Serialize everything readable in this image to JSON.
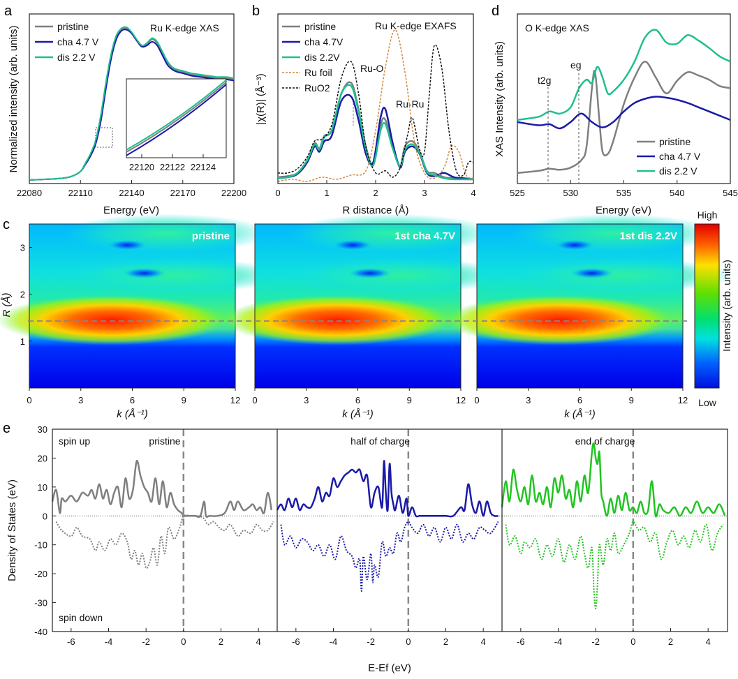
{
  "chart_data": [
    {
      "panel": "a",
      "type": "line",
      "title": "Ru K-edge XAS",
      "xlabel": "Energy (eV)",
      "ylabel": "Normalized intensity (arb. units)",
      "xlim": [
        22080,
        22200
      ],
      "ylim": [
        0,
        1.4
      ],
      "xticks": [
        22080,
        22110,
        22140,
        22170,
        22200
      ],
      "legend": "top-left",
      "series": [
        {
          "name": "pristine",
          "color": "#7f7f7f",
          "x": [
            22080,
            22090,
            22100,
            22105,
            22110,
            22113,
            22116,
            22119,
            22122,
            22125,
            22128,
            22131,
            22134,
            22137,
            22140,
            22143,
            22146,
            22149,
            22152,
            22155,
            22158,
            22161,
            22164,
            22167,
            22170,
            22175,
            22180,
            22185,
            22190,
            22195,
            22200
          ],
          "y": [
            0.03,
            0.035,
            0.045,
            0.06,
            0.1,
            0.17,
            0.24,
            0.35,
            0.55,
            0.82,
            1.05,
            1.2,
            1.27,
            1.28,
            1.24,
            1.18,
            1.13,
            1.15,
            1.19,
            1.16,
            1.08,
            1.0,
            0.95,
            0.93,
            0.92,
            0.9,
            0.89,
            0.88,
            0.87,
            0.87,
            0.86
          ]
        },
        {
          "name": "cha 4.7 V",
          "color": "#1a1aa8",
          "x": [
            22080,
            22090,
            22100,
            22105,
            22110,
            22113,
            22116,
            22119,
            22122,
            22125,
            22128,
            22131,
            22134,
            22137,
            22140,
            22143,
            22146,
            22149,
            22152,
            22155,
            22158,
            22161,
            22164,
            22167,
            22170,
            22175,
            22180,
            22185,
            22190,
            22195,
            22200
          ],
          "y": [
            0.03,
            0.035,
            0.045,
            0.06,
            0.1,
            0.16,
            0.23,
            0.33,
            0.52,
            0.79,
            1.03,
            1.19,
            1.26,
            1.27,
            1.24,
            1.18,
            1.13,
            1.14,
            1.17,
            1.14,
            1.06,
            0.98,
            0.94,
            0.92,
            0.91,
            0.89,
            0.88,
            0.87,
            0.86,
            0.86,
            0.85
          ]
        },
        {
          "name": "dis 2.2 V",
          "color": "#1fbf8f",
          "x": [
            22080,
            22090,
            22100,
            22105,
            22110,
            22113,
            22116,
            22119,
            22122,
            22125,
            22128,
            22131,
            22134,
            22137,
            22140,
            22143,
            22146,
            22149,
            22152,
            22155,
            22158,
            22161,
            22164,
            22167,
            22170,
            22175,
            22180,
            22185,
            22190,
            22195,
            22200
          ],
          "y": [
            0.03,
            0.035,
            0.045,
            0.06,
            0.1,
            0.17,
            0.25,
            0.36,
            0.57,
            0.84,
            1.07,
            1.22,
            1.28,
            1.29,
            1.25,
            1.19,
            1.14,
            1.16,
            1.2,
            1.17,
            1.09,
            1.01,
            0.96,
            0.94,
            0.93,
            0.91,
            0.9,
            0.89,
            0.88,
            0.88,
            0.87
          ]
        }
      ],
      "inset": {
        "xlim": [
          22119,
          22125.5
        ],
        "xticks": [
          22120,
          22122,
          22124
        ],
        "series": [
          {
            "name": "pristine",
            "color": "#7f7f7f",
            "x": [
              22119,
              22125.5
            ],
            "y": [
              0.35,
              0.97
            ]
          },
          {
            "name": "cha 4.7 V",
            "color": "#1a1aa8",
            "x": [
              22119,
              22125.5
            ],
            "y": [
              0.32,
              0.95
            ]
          },
          {
            "name": "dis 2.2 V",
            "color": "#1fbf8f",
            "x": [
              22119,
              22125.5
            ],
            "y": [
              0.37,
              0.99
            ]
          }
        ]
      }
    },
    {
      "panel": "b",
      "type": "line",
      "title": "Ru K-edge EXAFS",
      "xlabel": "R distance (Å)",
      "ylabel": "|χ(R)| (Å⁻³)",
      "xlim": [
        0,
        4
      ],
      "ylim": [
        0,
        1.6
      ],
      "xticks": [
        0,
        1,
        2,
        3,
        4
      ],
      "legend": "top-left",
      "annotations": [
        "Ru-O",
        "Ru-Ru"
      ],
      "series": [
        {
          "name": "pristine",
          "color": "#7f7f7f",
          "dash": false
        },
        {
          "name": "cha 4.7V",
          "color": "#1a1aa8",
          "dash": false
        },
        {
          "name": "dis 2.2V",
          "color": "#1fbf8f",
          "dash": false
        },
        {
          "name": "Ru foil",
          "color": "#d4893a",
          "dash": true
        },
        {
          "name": "RuO2",
          "color": "#111111",
          "dash": true
        }
      ]
    },
    {
      "panel": "d",
      "type": "line",
      "title": "O K-edge XAS",
      "xlabel": "Energy (eV)",
      "ylabel": "XAS Intensity (arb. units)",
      "xlim": [
        525,
        545
      ],
      "xticks": [
        525,
        530,
        535,
        540,
        545
      ],
      "legend": "bottom-right",
      "annotations": [
        "t2g",
        "eg"
      ],
      "series": [
        {
          "name": "pristine",
          "color": "#7f7f7f"
        },
        {
          "name": "cha 4.7 V",
          "color": "#1a1aa8"
        },
        {
          "name": "dis 2.2 V",
          "color": "#1fbf8f"
        }
      ]
    },
    {
      "panel": "c",
      "type": "heatmap",
      "xlabel": "k (Å⁻¹)",
      "ylabel": "R (Å)",
      "xlim": [
        0,
        12
      ],
      "ylim": [
        0,
        3.5
      ],
      "xticks": [
        0,
        3,
        6,
        9,
        12
      ],
      "yticks": [
        1,
        2,
        3
      ],
      "reference_R": 1.5,
      "maps": [
        "pristine",
        "1st cha 4.7V",
        "1st dis 2.2V"
      ],
      "colorbar": {
        "label": "Intensity (arb. units)",
        "high": "High",
        "low": "Low"
      }
    },
    {
      "panel": "e",
      "type": "line",
      "xlabel": "E-Ef (eV)",
      "ylabel": "Density of States (eV)",
      "xlim": [
        -7,
        5
      ],
      "ylim": [
        -40,
        30
      ],
      "xticks": [
        -6,
        -4,
        -2,
        0,
        2,
        4
      ],
      "yticks": [
        30,
        20,
        10,
        0,
        -10,
        -20,
        -30,
        -40
      ],
      "labels": {
        "spin_up": "spin up",
        "spin_down": "spin down"
      },
      "subplots": [
        {
          "title": "pristine",
          "color": "#7f7f7f",
          "up_x": [
            -7,
            -6.8,
            -6.6,
            -6.5,
            -6.3,
            -6,
            -5.7,
            -5.4,
            -5.1,
            -4.9,
            -4.7,
            -4.5,
            -4.3,
            -4.1,
            -3.9,
            -3.7,
            -3.5,
            -3.3,
            -3.1,
            -2.9,
            -2.7,
            -2.5,
            -2.3,
            -2.1,
            -1.9,
            -1.7,
            -1.5,
            -1.3,
            -1.1,
            -0.9,
            -0.7,
            -0.5,
            -0.3,
            -0.1,
            0,
            0.2,
            0.6,
            0.9,
            1.1,
            1.2,
            1.4,
            1.8,
            2.2,
            2.5,
            2.7,
            2.9,
            3.2,
            3.5,
            3.7,
            3.9,
            4.1,
            4.3,
            4.5,
            4.7
          ],
          "up_y": [
            5,
            9,
            1,
            6,
            5,
            7,
            5,
            8,
            7,
            9,
            6,
            11,
            6,
            9,
            4,
            8,
            10,
            3,
            13,
            6,
            9,
            19,
            14,
            10,
            8,
            5,
            13,
            4,
            12,
            3,
            8,
            4,
            2,
            1,
            0,
            0,
            0,
            0,
            5,
            0,
            0,
            0,
            1,
            5,
            2,
            5,
            2,
            3,
            4,
            2,
            3,
            1,
            8,
            2
          ],
          "down_x": [
            -6.8,
            -6.5,
            -6,
            -5.7,
            -5.4,
            -5,
            -4.7,
            -4.5,
            -4.2,
            -3.9,
            -3.6,
            -3.3,
            -3,
            -2.8,
            -2.6,
            -2.4,
            -2.2,
            -2,
            -1.8,
            -1.6,
            -1.4,
            -1.2,
            -1,
            -0.8,
            -0.5,
            -0.2,
            0,
            0.4,
            0.8,
            1.1,
            1.3,
            1.6,
            1.9,
            2.2,
            2.5,
            2.9,
            3.2,
            3.6,
            3.9,
            4.2,
            4.5,
            4.8
          ],
          "down_y": [
            -2,
            -5,
            -7,
            -4,
            -7,
            -8,
            -12,
            -9,
            -12,
            -8,
            -10,
            -6,
            -9,
            -15,
            -12,
            -17,
            -13,
            -18,
            -16,
            -11,
            -17,
            -7,
            -13,
            -4,
            -8,
            -4,
            0,
            0,
            0,
            -1,
            -3,
            -2,
            -4,
            -5,
            -3,
            -7,
            -5,
            -6,
            -3,
            -5,
            -5,
            -2
          ]
        },
        {
          "title": "half of charge",
          "color": "#1a1aa8",
          "up_x": [
            -7,
            -6.8,
            -6.6,
            -6.4,
            -6.2,
            -6,
            -5.8,
            -5.6,
            -5.4,
            -5.2,
            -5,
            -4.8,
            -4.6,
            -4.4,
            -4.2,
            -4,
            -3.8,
            -3.6,
            -3.4,
            -3.2,
            -3,
            -2.8,
            -2.6,
            -2.4,
            -2.2,
            -2,
            -1.8,
            -1.6,
            -1.4,
            -1.3,
            -1.2,
            -1.1,
            -1,
            -0.9,
            -0.8,
            -0.7,
            -0.5,
            -0.3,
            -0.1,
            0,
            0.2,
            0.4,
            0.6,
            1,
            1.5,
            2,
            2.4,
            2.8,
            3,
            3.2,
            3.4,
            3.6,
            3.8,
            4,
            4.2,
            4.4,
            4.6,
            4.8
          ],
          "up_y": [
            2,
            4,
            2,
            6,
            3,
            6,
            2,
            4,
            3,
            3,
            6,
            10,
            5,
            8,
            7,
            13,
            10,
            12,
            14,
            15,
            16,
            15,
            16,
            12,
            14,
            3,
            8,
            10,
            3,
            19,
            8,
            2,
            18,
            8,
            4,
            2,
            7,
            1,
            6,
            0,
            3,
            0,
            0,
            0,
            0,
            0,
            0,
            3,
            2,
            11,
            4,
            1,
            5,
            0,
            5,
            1,
            0,
            0
          ],
          "down_x": [
            -6.8,
            -6.6,
            -6.3,
            -6,
            -5.7,
            -5.4,
            -5.1,
            -4.8,
            -4.5,
            -4.2,
            -3.9,
            -3.6,
            -3.3,
            -3,
            -2.8,
            -2.6,
            -2.5,
            -2.4,
            -2.2,
            -2,
            -1.9,
            -1.8,
            -1.6,
            -1.4,
            -1.2,
            -1,
            -0.8,
            -0.6,
            -0.4,
            -0.2,
            0,
            0.2,
            0.5,
            0.8,
            1.1,
            1.4,
            1.7,
            2,
            2.3,
            2.6,
            2.9,
            3.2,
            3.5,
            3.8,
            4.1,
            4.4,
            4.8
          ],
          "down_y": [
            -3,
            -10,
            -7,
            -11,
            -8,
            -9,
            -12,
            -10,
            -14,
            -10,
            -15,
            -7,
            -12,
            -14,
            -18,
            -15,
            -26,
            -14,
            -22,
            -13,
            -23,
            -17,
            -21,
            -9,
            -14,
            -11,
            -13,
            -6,
            -9,
            -4,
            -2,
            -4,
            -6,
            -3,
            -7,
            -4,
            -9,
            -4,
            -8,
            -3,
            -9,
            -6,
            -8,
            -4,
            -5,
            -6,
            -2
          ]
        },
        {
          "title": "end of charge",
          "color": "#21c421",
          "up_x": [
            -7,
            -6.8,
            -6.6,
            -6.4,
            -6.2,
            -6,
            -5.8,
            -5.6,
            -5.4,
            -5.2,
            -5,
            -4.8,
            -4.6,
            -4.4,
            -4.2,
            -4,
            -3.8,
            -3.6,
            -3.4,
            -3.2,
            -3,
            -2.8,
            -2.6,
            -2.4,
            -2.2,
            -2.1,
            -2,
            -1.9,
            -1.8,
            -1.7,
            -1.6,
            -1.4,
            -1.2,
            -1,
            -0.8,
            -0.6,
            -0.4,
            -0.2,
            0,
            0.2,
            0.4,
            0.6,
            0.8,
            1,
            1.2,
            1.4,
            1.6,
            1.9,
            2.2,
            2.5,
            2.8,
            3.1,
            3.4,
            3.7,
            4,
            4.3,
            4.6,
            4.9
          ],
          "up_y": [
            3,
            12,
            5,
            16,
            9,
            5,
            10,
            4,
            14,
            5,
            8,
            4,
            10,
            3,
            13,
            8,
            14,
            6,
            9,
            3,
            12,
            5,
            14,
            8,
            22,
            25,
            20,
            18,
            22,
            8,
            5,
            0,
            6,
            1,
            7,
            2,
            8,
            2,
            3,
            1,
            5,
            1,
            2,
            12,
            0,
            4,
            2,
            1,
            3,
            0,
            3,
            1,
            5,
            1,
            3,
            1,
            4,
            0
          ],
          "down_x": [
            -6.8,
            -6.6,
            -6.3,
            -6,
            -5.8,
            -5.5,
            -5.2,
            -4.9,
            -4.6,
            -4.3,
            -4,
            -3.7,
            -3.4,
            -3.1,
            -2.8,
            -2.6,
            -2.4,
            -2.2,
            -2.1,
            -2,
            -1.9,
            -1.8,
            -1.6,
            -1.4,
            -1.2,
            -1,
            -0.8,
            -0.5,
            -0.2,
            0,
            0.3,
            0.6,
            0.9,
            1.2,
            1.5,
            1.8,
            2.1,
            2.4,
            2.7,
            3,
            3.3,
            3.6,
            3.9,
            4.2,
            4.5,
            4.8
          ],
          "down_y": [
            -3,
            -10,
            -7,
            -13,
            -9,
            -11,
            -8,
            -15,
            -10,
            -14,
            -8,
            -16,
            -10,
            -15,
            -7,
            -13,
            -18,
            -11,
            -25,
            -32,
            -23,
            -10,
            -17,
            -8,
            -12,
            -6,
            -13,
            -10,
            -6,
            -2,
            -5,
            -4,
            -9,
            -6,
            -15,
            -9,
            -5,
            -10,
            -7,
            -11,
            -5,
            -9,
            -3,
            -12,
            -6,
            -3
          ]
        }
      ]
    }
  ],
  "panel_labels": [
    "a",
    "b",
    "c",
    "d",
    "e"
  ]
}
